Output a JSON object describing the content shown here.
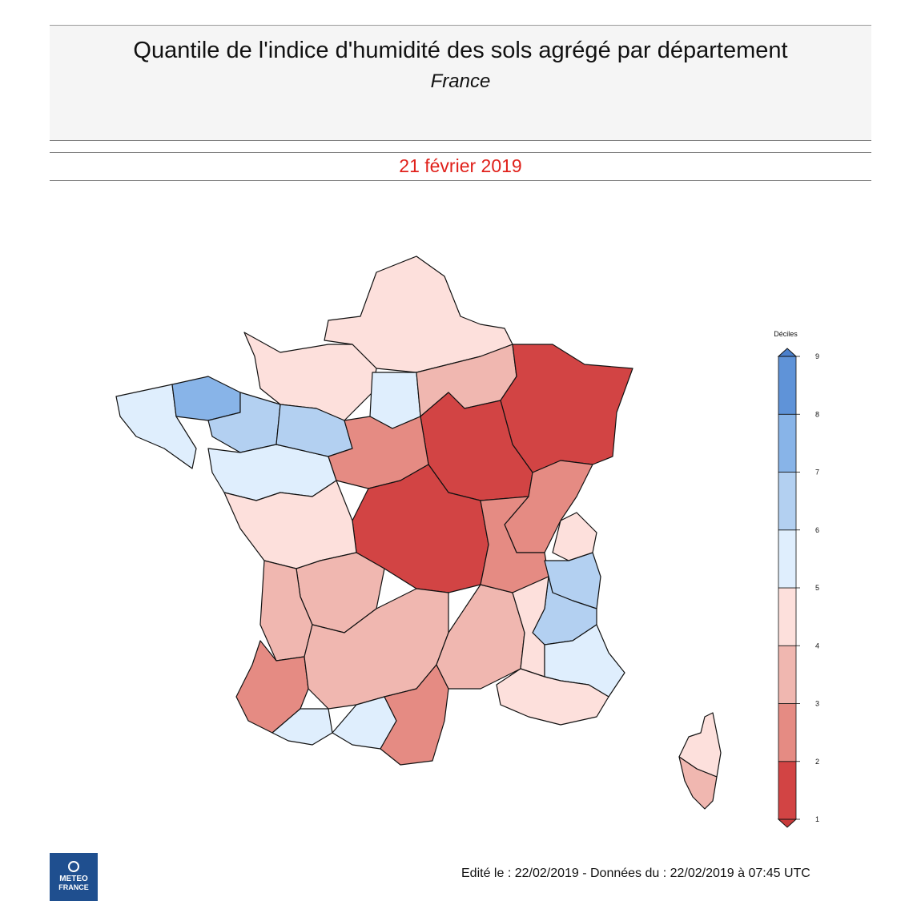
{
  "header": {
    "title": "Quantile de l'indice d'humidité des sols agrégé par département",
    "subtitle": "France",
    "date": "21 février 2019"
  },
  "legend": {
    "title": "Déciles",
    "ticks": [
      "1",
      "2",
      "3",
      "4",
      "5",
      "6",
      "7",
      "8",
      "9"
    ],
    "colors": [
      "#d24444",
      "#e58b83",
      "#f0b7b0",
      "#fde0dc",
      "#dfeefd",
      "#b3d0f1",
      "#88b4e8",
      "#5f93d8"
    ],
    "under_color": "#c83a3a",
    "over_color": "#4b80cc"
  },
  "map": {
    "mainland_outline_color": "#111111",
    "regions": [
      {
        "name": "nord",
        "decile": 4
      },
      {
        "name": "normandie",
        "decile": 4
      },
      {
        "name": "bretagne-ouest",
        "decile": 5
      },
      {
        "name": "bretagne-nord",
        "decile": 7
      },
      {
        "name": "bretagne-est",
        "decile": 6
      },
      {
        "name": "pays-loire",
        "decile": 5
      },
      {
        "name": "sarthe",
        "decile": 6
      },
      {
        "name": "ile-de-france",
        "decile": 5
      },
      {
        "name": "champagne",
        "decile": 3
      },
      {
        "name": "lorraine-alsace",
        "decile": 1
      },
      {
        "name": "bourgogne",
        "decile": 1
      },
      {
        "name": "centre",
        "decile": 2
      },
      {
        "name": "auvergne",
        "decile": 1
      },
      {
        "name": "franche-comte",
        "decile": 2
      },
      {
        "name": "poitou",
        "decile": 4
      },
      {
        "name": "limousin",
        "decile": 3
      },
      {
        "name": "aquitaine-nord",
        "decile": 3
      },
      {
        "name": "landes",
        "decile": 2
      },
      {
        "name": "pyrenees-atl",
        "decile": 5
      },
      {
        "name": "midi",
        "decile": 3
      },
      {
        "name": "ariege",
        "decile": 5
      },
      {
        "name": "pyrenees-orientales",
        "decile": 2
      },
      {
        "name": "languedoc",
        "decile": 3
      },
      {
        "name": "rhone",
        "decile": 2
      },
      {
        "name": "savoie",
        "decile": 6
      },
      {
        "name": "haute-savoie",
        "decile": 4
      },
      {
        "name": "isere",
        "decile": 6
      },
      {
        "name": "drome",
        "decile": 4
      },
      {
        "name": "alpes",
        "decile": 5
      },
      {
        "name": "provence",
        "decile": 4
      },
      {
        "name": "corse-nord",
        "decile": 4
      },
      {
        "name": "corse-sud",
        "decile": 3
      }
    ]
  },
  "footer": {
    "edition": "Edité le : 22/02/2019 - Données du : 22/02/2019 à 07:45 UTC",
    "logo_line1": "METEO",
    "logo_line2": "FRANCE"
  }
}
